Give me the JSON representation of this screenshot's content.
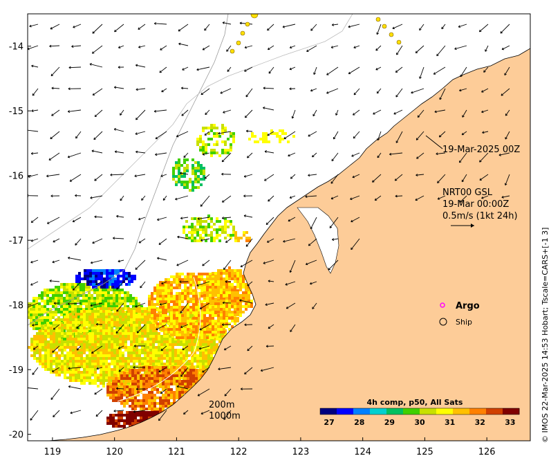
{
  "map": {
    "lat_ticks": [
      "-14",
      "-15",
      "-16",
      "-17",
      "-18",
      "-19",
      "-20"
    ],
    "lon_ticks": [
      "119",
      "120",
      "121",
      "122",
      "123",
      "124",
      "125",
      "126"
    ],
    "lon_range": [
      118.6,
      126.7
    ],
    "lat_range": [
      -20.1,
      -13.5
    ],
    "land_color": "#fdcc98",
    "ocean_color": "#ffffff"
  },
  "annotations": {
    "track_label": "19-Mar-2025 00Z",
    "info_line1": "NRT00 GSL",
    "info_line2": "19-Mar 00:00Z",
    "info_line3": "0.5m/s (1kt 24h)",
    "scale_arrow": "→"
  },
  "legend": {
    "argo_label": "Argo",
    "ship_label": "Ship",
    "argo_color": "#ff00ff"
  },
  "isobaths": {
    "label_200": "200m",
    "label_1000": "1000m"
  },
  "colorbar": {
    "title": "4h comp, p50, All Sats",
    "ticks": [
      "27",
      "28",
      "29",
      "30",
      "31",
      "32",
      "33"
    ],
    "range": [
      26.7,
      33.3
    ],
    "colors": [
      "#00007f",
      "#0000ff",
      "#0080ff",
      "#00d0d0",
      "#00c060",
      "#40d000",
      "#c8e000",
      "#ffff00",
      "#ffc000",
      "#ff8000",
      "#d04000",
      "#800000"
    ]
  },
  "credit": "© IMOS 22-Mar-2025 14:53 Hobart; Tscale=CARS+[-1 3]"
}
